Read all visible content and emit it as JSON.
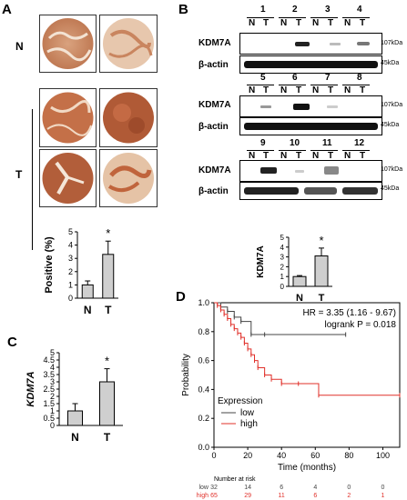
{
  "panels": {
    "a": "A",
    "b": "B",
    "c": "C",
    "d": "D"
  },
  "panel_a": {
    "row_n": "N",
    "row_t": "T"
  },
  "panel_b": {
    "kdm7a": "KDM7A",
    "bactin": "β-actin",
    "kda_kdm7a": "107kDa",
    "kda_actin": "45kDa",
    "n": "N",
    "t": "T",
    "lanes_row1": [
      "1",
      "2",
      "3",
      "4"
    ],
    "lanes_row2": [
      "5",
      "6",
      "7",
      "8"
    ],
    "lanes_row3": [
      "9",
      "10",
      "11",
      "12"
    ]
  },
  "chart_data": [
    {
      "type": "bar",
      "panel": "A",
      "categories": [
        "N",
        "T"
      ],
      "values": [
        1.0,
        3.3
      ],
      "errors": [
        0.3,
        1.0
      ],
      "ylabel": "Positive (%)",
      "ylim": [
        0,
        5
      ],
      "yticks": [
        "0",
        "1",
        "2",
        "3",
        "4",
        "5"
      ],
      "significance": "*"
    },
    {
      "type": "bar",
      "panel": "B",
      "categories": [
        "N",
        "T"
      ],
      "values": [
        1.0,
        3.1
      ],
      "errors": [
        0.1,
        0.8
      ],
      "ylabel": "KDM7A",
      "ylim": [
        0,
        5
      ],
      "yticks": [
        "0",
        "1",
        "2",
        "3",
        "4",
        "5"
      ],
      "significance": "*"
    },
    {
      "type": "bar",
      "panel": "C",
      "categories": [
        "N",
        "T"
      ],
      "values": [
        1.0,
        3.0
      ],
      "errors": [
        0.5,
        0.9
      ],
      "ylabel": "KDM7A",
      "ylim": [
        0,
        5
      ],
      "yticks": [
        "0",
        "0.5",
        "1",
        "1.5",
        "2",
        "2.5",
        "3",
        "3.5",
        "4",
        "4.5",
        "5"
      ],
      "significance": "*"
    },
    {
      "type": "line",
      "panel": "D",
      "xlabel": "Time (months)",
      "ylabel": "Probability",
      "xlim": [
        0,
        110
      ],
      "ylim": [
        0,
        1
      ],
      "xticks": [
        "0",
        "20",
        "40",
        "60",
        "80",
        "100"
      ],
      "yticks": [
        "0.0",
        "0.2",
        "0.4",
        "0.6",
        "0.8",
        "1.0"
      ],
      "annotations": [
        "HR = 3.35 (1.16 - 9.67)",
        "logrank P = 0.018"
      ],
      "legend_title": "Expression",
      "series": [
        {
          "name": "low",
          "color": "#444444",
          "x": [
            0,
            4,
            8,
            12,
            16,
            22,
            30,
            78
          ],
          "y": [
            1.0,
            0.97,
            0.94,
            0.9,
            0.87,
            0.78,
            0.78,
            0.78
          ]
        },
        {
          "name": "high",
          "color": "#e0302a",
          "x": [
            0,
            2,
            4,
            6,
            8,
            10,
            12,
            14,
            16,
            18,
            20,
            22,
            24,
            26,
            30,
            34,
            40,
            50,
            62,
            110
          ],
          "y": [
            1.0,
            0.98,
            0.95,
            0.92,
            0.89,
            0.85,
            0.82,
            0.79,
            0.76,
            0.72,
            0.68,
            0.64,
            0.6,
            0.55,
            0.5,
            0.47,
            0.44,
            0.44,
            0.36,
            0.36
          ]
        }
      ],
      "risk_table": {
        "title": "Number at risk",
        "rows": [
          {
            "label": "low",
            "color": "#444444",
            "counts": [
              "32",
              "14",
              "6",
              "4",
              "0",
              "0"
            ]
          },
          {
            "label": "high",
            "color": "#e0302a",
            "counts": [
              "65",
              "29",
              "11",
              "6",
              "2",
              "1"
            ]
          }
        ]
      }
    }
  ]
}
